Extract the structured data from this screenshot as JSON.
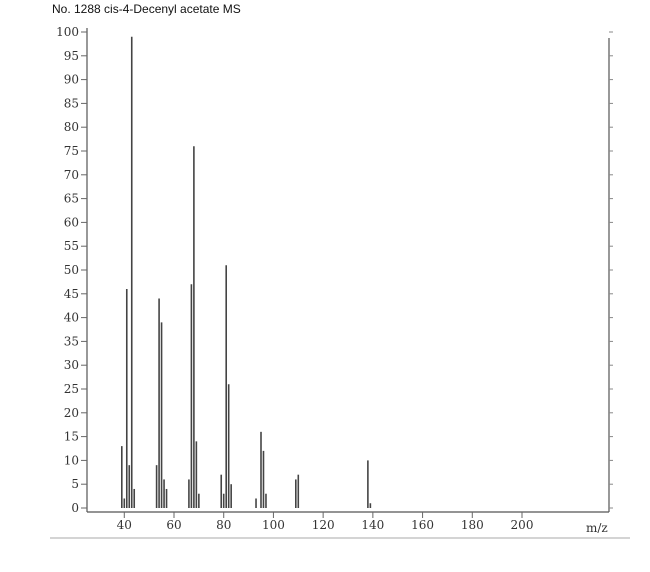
{
  "chart_data": {
    "type": "bar",
    "title": "No. 1288 cis-4-Decenyl acetate MS",
    "xlabel": "m/z",
    "ylabel": "",
    "xlim": [
      25,
      235
    ],
    "ylim": [
      0,
      100
    ],
    "x_ticks": [
      "40",
      "60",
      "80",
      "100",
      "120",
      "140",
      "160",
      "180",
      "200"
    ],
    "y_ticks": [
      "0",
      "5",
      "10",
      "15",
      "20",
      "25",
      "30",
      "35",
      "40",
      "45",
      "50",
      "55",
      "60",
      "65",
      "70",
      "75",
      "80",
      "85",
      "90",
      "95",
      "100"
    ],
    "peaks": [
      {
        "mz": 39,
        "intensity": 13
      },
      {
        "mz": 40,
        "intensity": 2
      },
      {
        "mz": 41,
        "intensity": 46
      },
      {
        "mz": 42,
        "intensity": 9
      },
      {
        "mz": 43,
        "intensity": 99
      },
      {
        "mz": 44,
        "intensity": 4
      },
      {
        "mz": 53,
        "intensity": 9
      },
      {
        "mz": 54,
        "intensity": 44
      },
      {
        "mz": 55,
        "intensity": 39
      },
      {
        "mz": 56,
        "intensity": 6
      },
      {
        "mz": 57,
        "intensity": 4
      },
      {
        "mz": 66,
        "intensity": 6
      },
      {
        "mz": 67,
        "intensity": 47
      },
      {
        "mz": 68,
        "intensity": 76
      },
      {
        "mz": 69,
        "intensity": 14
      },
      {
        "mz": 70,
        "intensity": 3
      },
      {
        "mz": 79,
        "intensity": 7
      },
      {
        "mz": 80,
        "intensity": 3
      },
      {
        "mz": 81,
        "intensity": 51
      },
      {
        "mz": 82,
        "intensity": 26
      },
      {
        "mz": 83,
        "intensity": 5
      },
      {
        "mz": 93,
        "intensity": 2
      },
      {
        "mz": 95,
        "intensity": 16
      },
      {
        "mz": 96,
        "intensity": 12
      },
      {
        "mz": 97,
        "intensity": 3
      },
      {
        "mz": 109,
        "intensity": 6
      },
      {
        "mz": 110,
        "intensity": 7
      },
      {
        "mz": 138,
        "intensity": 10
      },
      {
        "mz": 139,
        "intensity": 1
      }
    ]
  }
}
